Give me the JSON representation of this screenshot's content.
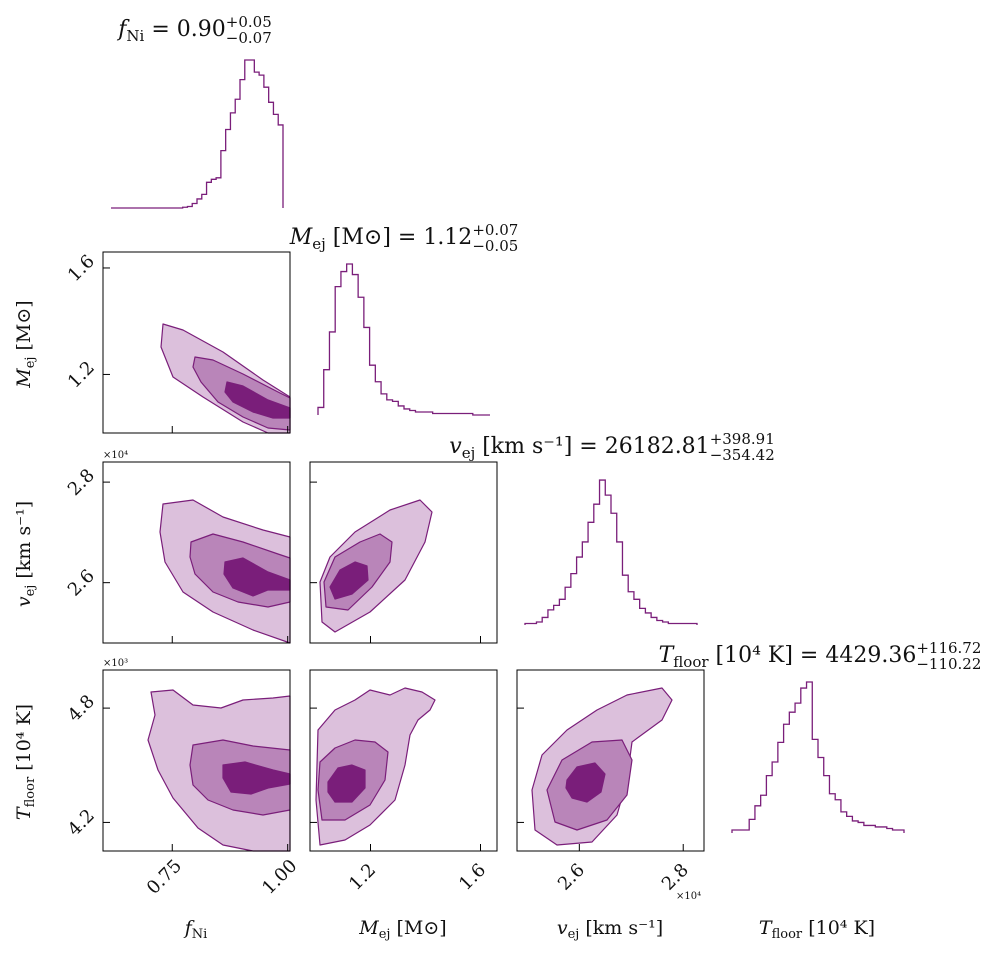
{
  "chart_data": {
    "type": "corner",
    "color": "#7a1e7a",
    "fill_colors": [
      "#dcc0dc",
      "#b985b9",
      "#7a1e7a"
    ],
    "params": [
      {
        "name": "f_Ni",
        "axis_label": "f",
        "axis_sub": "Ni",
        "axis_unit": "",
        "title_value": "0.90",
        "title_plus": "+0.05",
        "title_minus": "−0.07",
        "range": [
          0.6,
          1.005
        ],
        "ticks": [
          0.75,
          1.0
        ],
        "tick_labels": [
          "0.75",
          "1.00"
        ],
        "histogram": [
          0,
          0,
          0,
          0,
          0,
          0,
          0,
          0,
          0,
          0,
          0,
          0,
          0,
          0,
          0,
          0.005,
          0.01,
          0.03,
          0.06,
          0.09,
          0.17,
          0.19,
          0.2,
          0.38,
          0.52,
          0.63,
          0.72,
          0.85,
          0.98,
          0.98,
          0.9,
          0.88,
          0.8,
          0.7,
          0.62,
          0.55
        ]
      },
      {
        "name": "M_ej",
        "axis_label": "M",
        "axis_sub": "ej",
        "axis_unit": "[M⊙]",
        "title_value": "1.12",
        "title_plus": "+0.07",
        "title_minus": "−0.05",
        "range": [
          0.98,
          1.66
        ],
        "ticks": [
          1.2,
          1.6
        ],
        "tick_labels": [
          "1.2",
          "1.6"
        ],
        "histogram": [
          0.05,
          0.3,
          0.55,
          0.85,
          0.95,
          1.0,
          0.93,
          0.78,
          0.58,
          0.33,
          0.22,
          0.14,
          0.1,
          0.09,
          0.06,
          0.04,
          0.03,
          0.02,
          0.02,
          0.02,
          0.01,
          0.01,
          0.01,
          0.01,
          0.01,
          0.01,
          0.01,
          0,
          0,
          0
        ]
      },
      {
        "name": "v_ej",
        "axis_label": "v",
        "axis_sub": "ej",
        "axis_unit": "[km s⁻¹]",
        "title_value": "26182.81",
        "title_plus": "+398.91",
        "title_minus": "−354.42",
        "range": [
          24800,
          28400
        ],
        "ticks": [
          26000,
          28000
        ],
        "tick_labels": [
          "2.6",
          "2.8"
        ],
        "scale_label": "×10⁴",
        "histogram": [
          0.01,
          0.01,
          0.02,
          0.05,
          0.1,
          0.13,
          0.17,
          0.25,
          0.34,
          0.45,
          0.55,
          0.68,
          0.8,
          0.96,
          0.86,
          0.74,
          0.55,
          0.33,
          0.22,
          0.17,
          0.11,
          0.08,
          0.05,
          0.03,
          0.02,
          0.01,
          0.01,
          0.01,
          0.01,
          0.01
        ]
      },
      {
        "name": "T_floor",
        "axis_label": "T",
        "axis_sub": "floor",
        "axis_unit": "[10⁴  K]",
        "title_value": "4429.36",
        "title_plus": "+116.72",
        "title_minus": "−110.22",
        "range": [
          4050,
          5000
        ],
        "ticks": [
          4200,
          4800
        ],
        "tick_labels": [
          "4.2",
          "4.8"
        ],
        "scale_label": "×10³",
        "histogram": [
          0.02,
          0.02,
          0.02,
          0.09,
          0.18,
          0.25,
          0.38,
          0.47,
          0.6,
          0.72,
          0.8,
          0.86,
          0.96,
          1.0,
          0.62,
          0.5,
          0.38,
          0.26,
          0.22,
          0.14,
          0.11,
          0.08,
          0.07,
          0.05,
          0.05,
          0.04,
          0.04,
          0.03,
          0.02,
          0.02
        ]
      }
    ]
  }
}
